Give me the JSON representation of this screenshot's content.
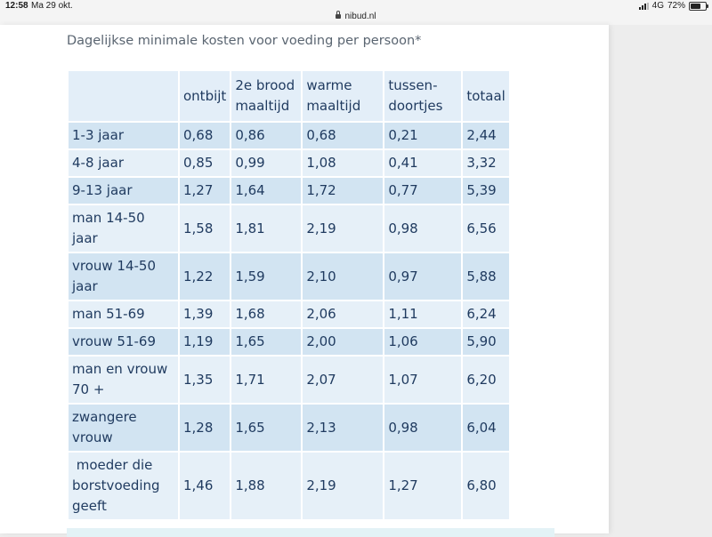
{
  "status_bar": {
    "time": "12:58",
    "date": "Ma 29 okt.",
    "url": "nibud.nl",
    "network": "4G",
    "battery": "72%",
    "battery_level": 0.72
  },
  "content": {
    "heading": "Dagelijkse minimale kosten voor voeding per persoon*",
    "table": {
      "headers": [
        "",
        [
          "ontbijt"
        ],
        [
          "2e brood",
          "maaltijd"
        ],
        [
          "warme",
          "maaltijd"
        ],
        [
          "tussen-",
          "doortjes"
        ],
        [
          "totaal"
        ]
      ],
      "rows": [
        {
          "label": [
            "1-3 jaar"
          ],
          "values": [
            "0,68",
            "0,86",
            "0,68",
            "0,21",
            "2,44"
          ]
        },
        {
          "label": [
            "4-8 jaar"
          ],
          "values": [
            "0,85",
            "0,99",
            "1,08",
            "0,41",
            "3,32"
          ]
        },
        {
          "label": [
            "9-13 jaar"
          ],
          "values": [
            "1,27",
            "1,64",
            "1,72",
            "0,77",
            "5,39"
          ]
        },
        {
          "label": [
            "man 14-50 jaar"
          ],
          "values": [
            "1,58",
            "1,81",
            "2,19",
            "0,98",
            "6,56"
          ]
        },
        {
          "label": [
            "vrouw 14-50",
            "jaar"
          ],
          "values": [
            "1,22",
            "1,59",
            "2,10",
            "0,97",
            "5,88"
          ]
        },
        {
          "label": [
            "man 51-69"
          ],
          "values": [
            "1,39",
            "1,68",
            "2,06",
            "1,11",
            "6,24"
          ]
        },
        {
          "label": [
            "vrouw 51-69"
          ],
          "values": [
            "1,19",
            "1,65",
            "2,00",
            "1,06",
            "5,90"
          ]
        },
        {
          "label": [
            "man en vrouw",
            "70 +"
          ],
          "values": [
            "1,35",
            "1,71",
            "2,07",
            "1,07",
            "6,20"
          ]
        },
        {
          "label": [
            "zwangere vrouw"
          ],
          "values": [
            "1,28",
            "1,65",
            "2,13",
            "0,98",
            "6,04"
          ]
        },
        {
          "label": [
            " moeder die",
            "borstvoeding",
            "geeft"
          ],
          "values": [
            "1,46",
            "1,88",
            "2,19",
            "1,27",
            "6,80"
          ]
        }
      ]
    }
  },
  "colors": {
    "text": "#1f3a5f",
    "heading": "#5a6571",
    "row_dark": "#d2e4f2",
    "row_light": "#e6f0f8",
    "header_bg": "#e3eef8"
  }
}
